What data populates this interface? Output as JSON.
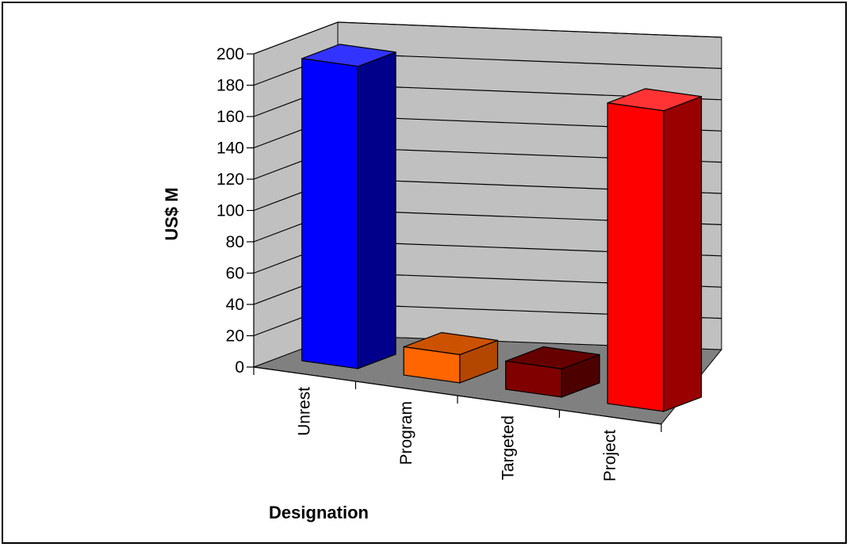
{
  "chart_data": {
    "type": "bar",
    "style": "3d-column",
    "categories": [
      "Unrest",
      "Program",
      "Targeted",
      "Project"
    ],
    "values": [
      193,
      18,
      18,
      192
    ],
    "ylabel": "US$ M",
    "xlabel": "Designation",
    "ylim": [
      0,
      200
    ],
    "yticks": [
      "0",
      "20",
      "40",
      "60",
      "80",
      "100",
      "120",
      "140",
      "160",
      "180",
      "200"
    ],
    "grid": true,
    "legend": "none",
    "colors": {
      "bars": [
        "#0000ff",
        "#ff6600",
        "#800000",
        "#ff0000"
      ],
      "bar_sides": [
        "#00008b",
        "#b34700",
        "#4d0000",
        "#990000"
      ],
      "bar_tops": [
        "#3333ff",
        "#cc5200",
        "#660000",
        "#ff3333"
      ],
      "back_wall": "#c0c0c0",
      "side_wall": "#c0c0c0",
      "floor": "#808080"
    }
  }
}
